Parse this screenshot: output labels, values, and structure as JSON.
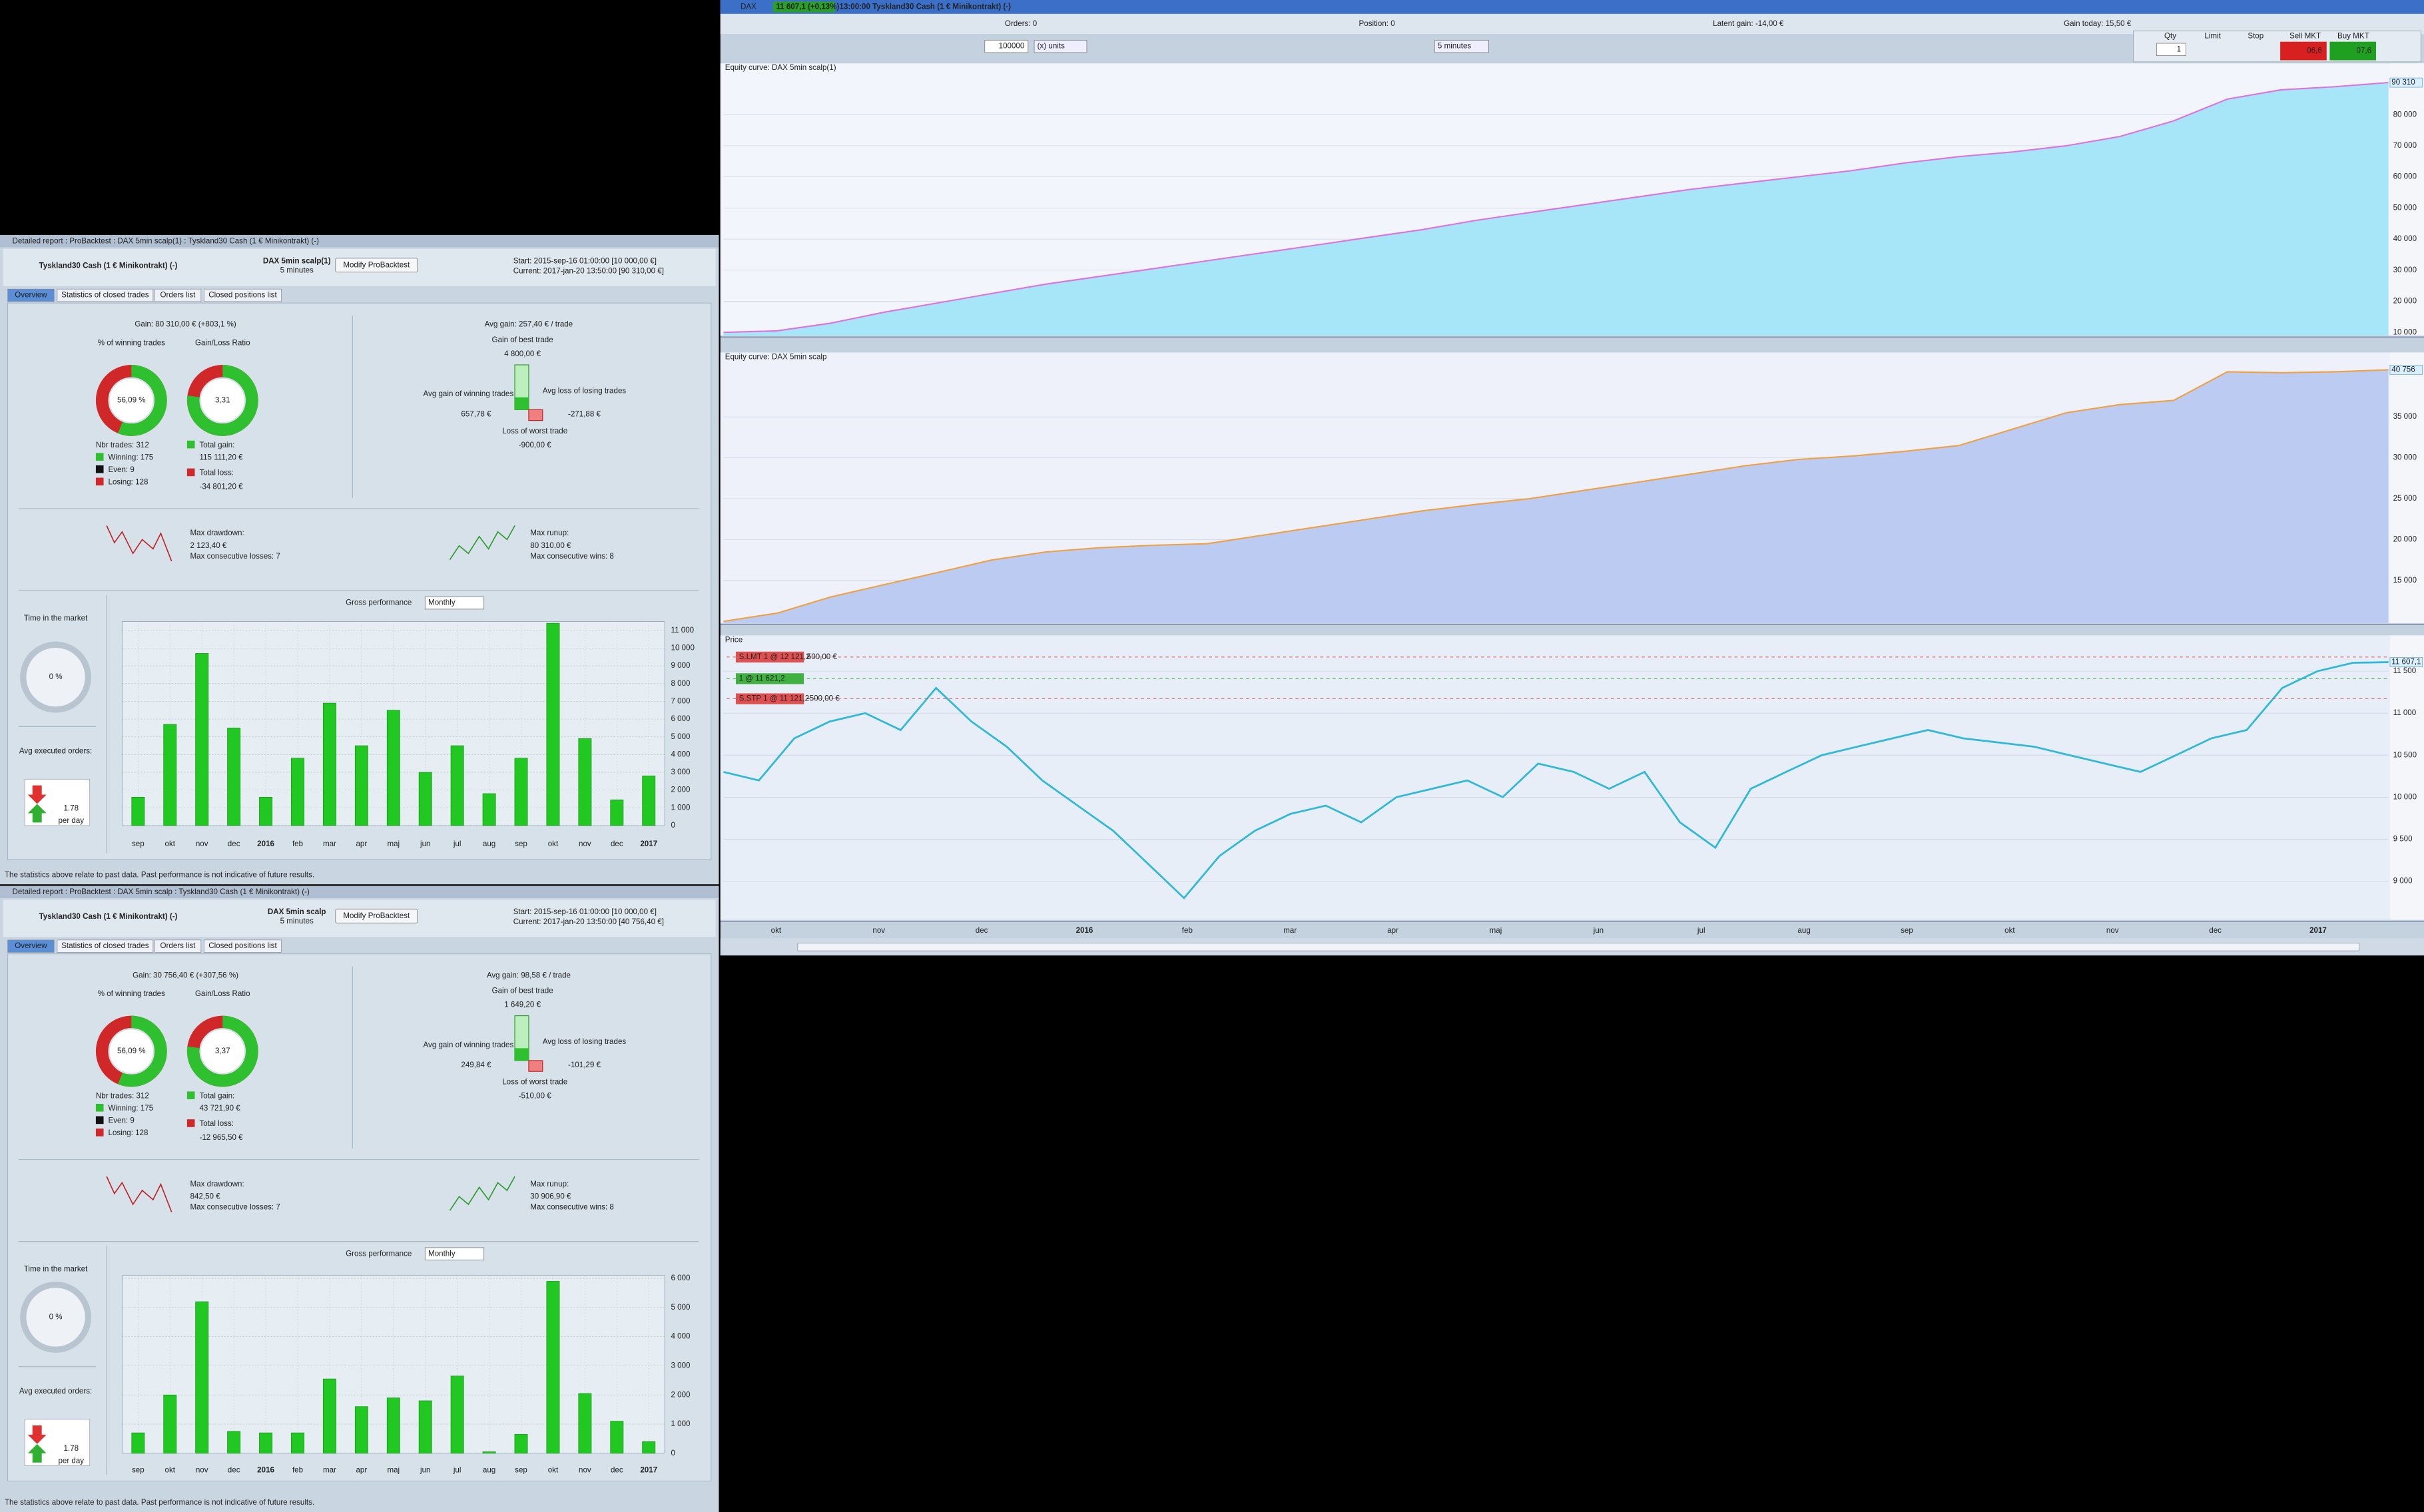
{
  "chart_window": {
    "top_bar": {
      "symbol": "DAX",
      "quote": "11 607,1 (+0,13%)",
      "description": "13:00:00 Tyskland30 Cash (1 € Minikontrakt) (-)",
      "orders": "Orders: 0",
      "position": "Position: 0",
      "latent_gain": "Latent gain: -14,00 €",
      "gain_today": "Gain today: 15,50 €"
    },
    "controls": {
      "quantity": "100000",
      "units": "(x) units",
      "timeframe": "5 minutes",
      "qty": "Qty",
      "qty_value": "1",
      "limit": "Limit",
      "stop": "Stop",
      "sell": "Sell MKT",
      "buy": "Buy MKT",
      "sell_price": "06,6",
      "buy_price": "07,6"
    },
    "x_labels": [
      "okt",
      "nov",
      "dec",
      "2016",
      "feb",
      "mar",
      "apr",
      "maj",
      "jun",
      "jul",
      "aug",
      "sep",
      "okt",
      "nov",
      "dec",
      "2017"
    ],
    "equity1": {
      "type": "line",
      "title": "Equity curve: DAX 5min scalp(1)",
      "color": "#e070e0",
      "fill": "#a6e6f8",
      "values": [
        10000,
        10500,
        13000,
        16500,
        19500,
        22500,
        25500,
        28000,
        30500,
        33000,
        35500,
        38000,
        40500,
        43000,
        46000,
        48500,
        51000,
        53500,
        56000,
        58000,
        60000,
        62000,
        64500,
        66500,
        68000,
        70000,
        73000,
        78000,
        85000,
        88000,
        89000,
        90310
      ],
      "ylim": [
        9000,
        95000
      ],
      "yticks": [
        {
          "value": 10000,
          "label": "10 000"
        },
        {
          "value": 20000,
          "label": "20 000"
        },
        {
          "value": 30000,
          "label": "30 000"
        },
        {
          "value": 40000,
          "label": "40 000"
        },
        {
          "value": 50000,
          "label": "50 000"
        },
        {
          "value": 60000,
          "label": "60 000"
        },
        {
          "value": 70000,
          "label": "70 000"
        },
        {
          "value": 80000,
          "label": "80 000"
        }
      ],
      "last_label": "90 310"
    },
    "equity2": {
      "type": "line",
      "title": "Equity curve: DAX 5min scalp",
      "color": "#f0a040",
      "fill": "#bccbf2",
      "values": [
        10000,
        11000,
        13000,
        14500,
        16000,
        17500,
        18500,
        19000,
        19300,
        19500,
        20500,
        21500,
        22500,
        23500,
        24300,
        25000,
        26000,
        27000,
        28000,
        29000,
        29800,
        30200,
        30800,
        31500,
        33500,
        35500,
        36500,
        37000,
        40500,
        40400,
        40500,
        40756
      ],
      "ylim": [
        9800,
        42300
      ],
      "yticks": [
        {
          "value": 15000,
          "label": "15 000"
        },
        {
          "value": 20000,
          "label": "20 000"
        },
        {
          "value": 25000,
          "label": "25 000"
        },
        {
          "value": 30000,
          "label": "30 000"
        },
        {
          "value": 35000,
          "label": "35 000"
        }
      ],
      "last_label": "40 756"
    },
    "price": {
      "type": "line",
      "title": "Price",
      "color": "#30b8d8",
      "values": [
        10300,
        10200,
        10700,
        10900,
        11000,
        10800,
        11300,
        10900,
        10600,
        10200,
        9900,
        9600,
        9200,
        8800,
        9300,
        9600,
        9800,
        9900,
        9700,
        10000,
        10100,
        10200,
        10000,
        10400,
        10300,
        10100,
        10300,
        9700,
        9400,
        10100,
        10300,
        10500,
        10600,
        10700,
        10800,
        10700,
        10650,
        10600,
        10500,
        10400,
        10300,
        10500,
        10700,
        10800,
        11300,
        11500,
        11600,
        11607.1
      ],
      "ylim": [
        8540,
        11870
      ],
      "yticks": [
        {
          "value": 9000,
          "label": "9 000"
        },
        {
          "value": 9500,
          "label": "9 500"
        },
        {
          "value": 10000,
          "label": "10 000"
        },
        {
          "value": 10500,
          "label": "10 500"
        },
        {
          "value": 11000,
          "label": "11 000"
        },
        {
          "value": 11500,
          "label": "11 500"
        }
      ],
      "last_label": "11 607,1",
      "orders": [
        "S.LMT 1 @ 12 121,2",
        "500,00 €",
        "1 @ 11 621,2",
        "S.STP 1 @ 11 121,2",
        "-500,00 €"
      ]
    }
  },
  "reports": [
    {
      "window_title": "Detailed report : ProBacktest : DAX 5min scalp(1) : Tyskland30 Cash (1 € Minikontrakt) (-)",
      "instrument": "Tyskland30 Cash (1 € Minikontrakt) (-)",
      "system": "DAX 5min scalp(1)",
      "timeframe": "5 minutes",
      "button": "Modify ProBacktest",
      "start": "Start: 2015-sep-16 01:00:00 [10 000,00 €]",
      "current": "Current: 2017-jan-20 13:50:00 [90 310,00 €]",
      "tabs": [
        "Overview",
        "Statistics of closed trades",
        "Orders list",
        "Closed positions list"
      ],
      "gain": "Gain: 80 310,00 € (+803,1 %)",
      "winning_label": "% of winning trades",
      "winning_pct": "56,09 %",
      "ratio_label": "Gain/Loss Ratio",
      "ratio": "3,31",
      "nbr_trades": "Nbr trades: 312",
      "winning": "Winning: 175",
      "even": "Even: 9",
      "losing": "Losing: 128",
      "total_gain": "Total gain:",
      "total_gain_value": "115 111,20 €",
      "total_loss": "Total loss:",
      "total_loss_value": "-34 801,20 €",
      "avg_gain": "Avg gain: 257,40 € / trade",
      "best_label": "Gain of best trade",
      "best": "4 800,00 €",
      "avg_win_label": "Avg gain of winning trades",
      "avg_win": "657,78 €",
      "avg_loss_label": "Avg loss of losing trades",
      "avg_loss": "-271,88 €",
      "worst_label": "Loss of worst trade",
      "worst": "-900,00 €",
      "drawdown_label": "Max drawdown:",
      "drawdown": "2 123,40 €",
      "consec_losses": "Max consecutive losses: 7",
      "runup_label": "Max runup:",
      "runup": "80 310,00 €",
      "consec_wins": "Max consecutive wins: 8",
      "time_label": "Time in the market",
      "time": "0 %",
      "orders_label": "Avg executed orders:",
      "orders_per_day": "1.78",
      "per_day": "per day",
      "gross": {
        "title": "Gross performance",
        "period": "Monthly",
        "categories": [
          "sep",
          "okt",
          "nov",
          "dec",
          "2016",
          "feb",
          "mar",
          "apr",
          "maj",
          "jun",
          "jul",
          "aug",
          "sep",
          "okt",
          "nov",
          "dec",
          "2017"
        ],
        "values": [
          1600,
          5700,
          9700,
          5500,
          1600,
          3800,
          6900,
          4500,
          6500,
          3000,
          4500,
          1800,
          3800,
          11400,
          4900,
          1450,
          2800
        ],
        "ylim": [
          0,
          11500
        ],
        "yticks": [
          0,
          {
            "value": 1000,
            "label": "1 000"
          },
          {
            "value": 2000,
            "label": "2 000"
          },
          {
            "value": 3000,
            "label": "3 000"
          },
          {
            "value": 4000,
            "label": "4 000"
          },
          {
            "value": 5000,
            "label": "5 000"
          },
          {
            "value": 6000,
            "label": "6 000"
          },
          {
            "value": 7000,
            "label": "7 000"
          },
          {
            "value": 8000,
            "label": "8 000"
          },
          {
            "value": 9000,
            "label": "9 000"
          },
          {
            "value": 10000,
            "label": "10 000"
          },
          {
            "value": 11000,
            "label": "11 000"
          }
        ]
      },
      "disclaimer": "The statistics above relate to past data. Past performance is not indicative of future results."
    },
    {
      "window_title": "Detailed report : ProBacktest : DAX 5min scalp : Tyskland30 Cash (1 € Minikontrakt) (-)",
      "instrument": "Tyskland30 Cash (1 € Minikontrakt) (-)",
      "system": "DAX 5min scalp",
      "timeframe": "5 minutes",
      "button": "Modify ProBacktest",
      "start": "Start: 2015-sep-16 01:00:00 [10 000,00 €]",
      "current": "Current: 2017-jan-20 13:50:00 [40 756,40 €]",
      "tabs": [
        "Overview",
        "Statistics of closed trades",
        "Orders list",
        "Closed positions list"
      ],
      "gain": "Gain: 30 756,40 € (+307,56 %)",
      "winning_label": "% of winning trades",
      "winning_pct": "56,09 %",
      "ratio_label": "Gain/Loss Ratio",
      "ratio": "3,37",
      "nbr_trades": "Nbr trades: 312",
      "winning": "Winning: 175",
      "even": "Even: 9",
      "losing": "Losing: 128",
      "total_gain": "Total gain:",
      "total_gain_value": "43 721,90 €",
      "total_loss": "Total loss:",
      "total_loss_value": "-12 965,50 €",
      "avg_gain": "Avg gain: 98,58 € / trade",
      "best_label": "Gain of best trade",
      "best": "1 649,20 €",
      "avg_win_label": "Avg gain of winning trades",
      "avg_win": "249,84 €",
      "avg_loss_label": "Avg loss of losing trades",
      "avg_loss": "-101,29 €",
      "worst_label": "Loss of worst trade",
      "worst": "-510,00 €",
      "drawdown_label": "Max drawdown:",
      "drawdown": "842,50 €",
      "consec_losses": "Max consecutive losses: 7",
      "runup_label": "Max runup:",
      "runup": "30 906,90 €",
      "consec_wins": "Max consecutive wins: 8",
      "time_label": "Time in the market",
      "time": "0 %",
      "orders_label": "Avg executed orders:",
      "orders_per_day": "1.78",
      "per_day": "per day",
      "gross": {
        "title": "Gross performance",
        "period": "Monthly",
        "categories": [
          "sep",
          "okt",
          "nov",
          "dec",
          "2016",
          "feb",
          "mar",
          "apr",
          "maj",
          "jun",
          "jul",
          "aug",
          "sep",
          "okt",
          "nov",
          "dec",
          "2017"
        ],
        "values": [
          700,
          2000,
          5200,
          750,
          700,
          700,
          2550,
          1600,
          1900,
          1800,
          2650,
          50,
          650,
          5900,
          2050,
          1100,
          400
        ],
        "ylim": [
          0,
          6100
        ],
        "yticks": [
          0,
          {
            "value": 1000,
            "label": "1 000"
          },
          {
            "value": 2000,
            "label": "2 000"
          },
          {
            "value": 3000,
            "label": "3 000"
          },
          {
            "value": 4000,
            "label": "4 000"
          },
          {
            "value": 5000,
            "label": "5 000"
          },
          {
            "value": 6000,
            "label": "6 000"
          }
        ]
      },
      "disclaimer": "The statistics above relate to past data. Past performance is not indicative of future results."
    }
  ]
}
